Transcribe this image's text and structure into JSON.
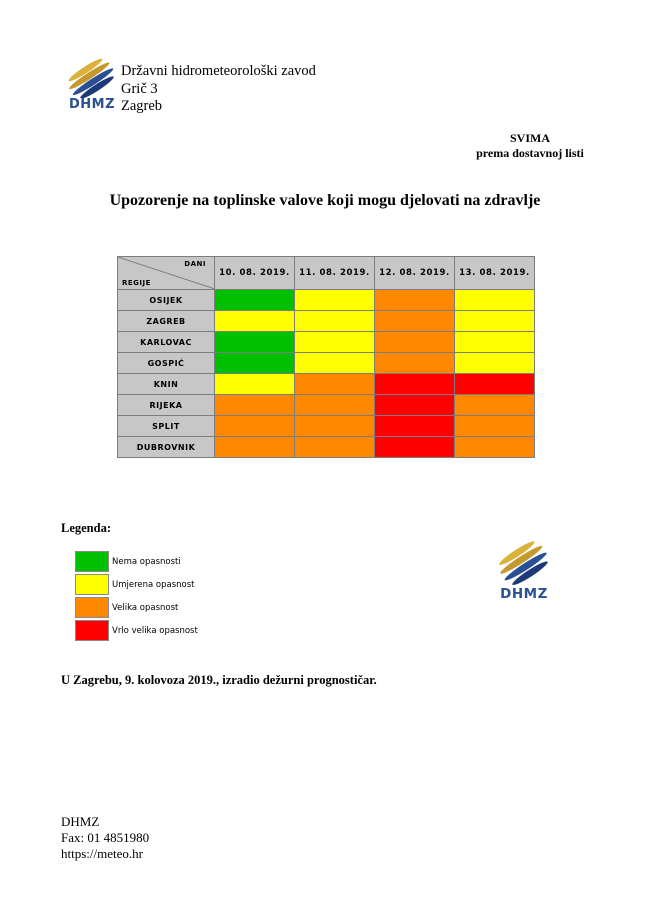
{
  "header": {
    "logo_text": "DHMZ",
    "address_lines": [
      "Državni hidrometeorološki zavod",
      "Grič 3",
      "Zagreb"
    ]
  },
  "recipient": {
    "line1": "SVIMA",
    "line2": "prema dostavnoj listi"
  },
  "title": "Upozorenje na toplinske valove koji mogu djelovati na zdravlje",
  "table": {
    "corner_top": "DANI",
    "corner_bottom": "REGIJE",
    "dates": [
      "10. 08. 2019.",
      "11. 08. 2019.",
      "12. 08. 2019.",
      "13. 08. 2019."
    ],
    "rows": [
      {
        "region": "OSIJEK",
        "levels": [
          "nema",
          "umjerena",
          "velika",
          "umjerena"
        ]
      },
      {
        "region": "ZAGREB",
        "levels": [
          "umjerena",
          "umjerena",
          "velika",
          "umjerena"
        ]
      },
      {
        "region": "KARLOVAC",
        "levels": [
          "nema",
          "umjerena",
          "velika",
          "umjerena"
        ]
      },
      {
        "region": "GOSPIĆ",
        "levels": [
          "nema",
          "umjerena",
          "velika",
          "umjerena"
        ]
      },
      {
        "region": "KNIN",
        "levels": [
          "umjerena",
          "velika",
          "vrlo_velika",
          "vrlo_velika"
        ]
      },
      {
        "region": "RIJEKA",
        "levels": [
          "velika",
          "velika",
          "vrlo_velika",
          "velika"
        ]
      },
      {
        "region": "SPLIT",
        "levels": [
          "velika",
          "velika",
          "vrlo_velika",
          "velika"
        ]
      },
      {
        "region": "DUBROVNIK",
        "levels": [
          "velika",
          "velika",
          "vrlo_velika",
          "velika"
        ]
      }
    ]
  },
  "legend": {
    "title": "Legenda:",
    "items": [
      {
        "key": "nema",
        "label": "Nema opasnosti",
        "color": "#00c000"
      },
      {
        "key": "umjerena",
        "label": "Umjerena opasnost",
        "color": "#ffff00"
      },
      {
        "key": "velika",
        "label": "Velika opasnost",
        "color": "#ff8800"
      },
      {
        "key": "vrlo_velika",
        "label": "Vrlo velika opasnost",
        "color": "#ff0000"
      }
    ]
  },
  "issued": "U Zagrebu, 9. kolovoza 2019., izradio dežurni prognostičar.",
  "footer": {
    "lines": [
      "DHMZ",
      "Fax: 01 4851980",
      "https://meteo.hr"
    ]
  }
}
